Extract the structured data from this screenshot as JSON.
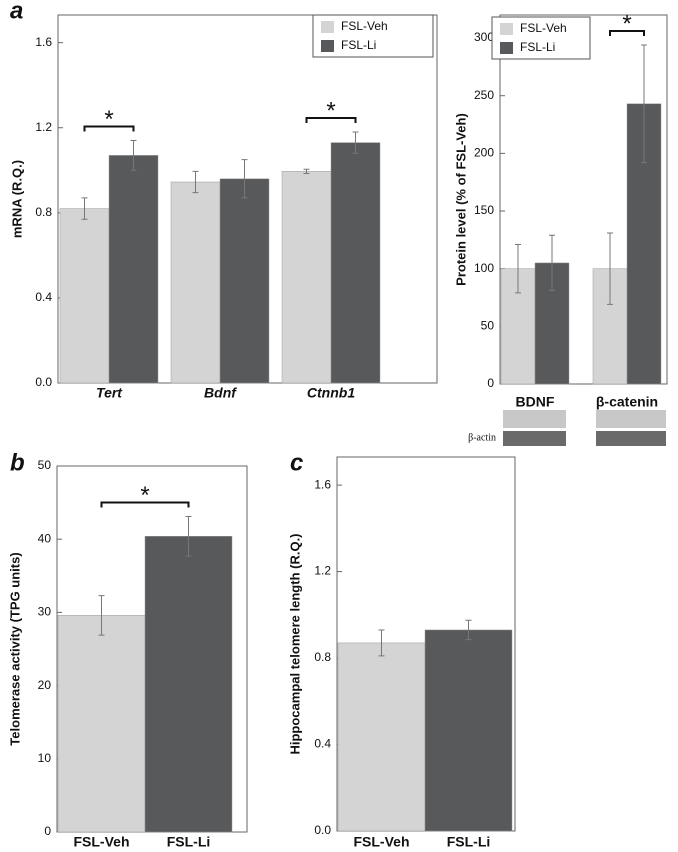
{
  "chart_data": [
    {
      "type": "bar",
      "panel_label": "a",
      "y_label": "mRNA (R.Q.)",
      "categories": [
        "Tert",
        "Bdnf",
        "Ctnnb1"
      ],
      "series": [
        {
          "name": "FSL-Veh",
          "color": "#d4d4d4",
          "values": [
            0.82,
            0.945,
            0.995
          ],
          "errors": [
            0.05,
            0.05,
            0.01
          ]
        },
        {
          "name": "FSL-Li",
          "color": "#58595b",
          "values": [
            1.07,
            0.96,
            1.13
          ],
          "errors": [
            0.07,
            0.09,
            0.05
          ]
        }
      ],
      "significance": [
        "*",
        null,
        "*"
      ],
      "ylim": [
        0,
        1.73
      ],
      "yticks": [
        {
          "value": 0,
          "label": "0.0"
        },
        0.4,
        0.8,
        1.2,
        1.6
      ],
      "legend": "upper right",
      "italic_categories": true
    },
    {
      "type": "bar",
      "y_label": "Protein level (% of FSL-Veh)",
      "categories": [
        "BDNF",
        "β-catenin"
      ],
      "series": [
        {
          "name": "FSL-Veh",
          "color": "#d4d4d4",
          "values": [
            100,
            100
          ],
          "errors": [
            21,
            31
          ]
        },
        {
          "name": "FSL-Li",
          "color": "#58595b",
          "values": [
            105,
            243
          ],
          "errors": [
            24,
            51
          ]
        }
      ],
      "significance": [
        null,
        "*"
      ],
      "ylim": [
        0,
        320
      ],
      "yticks": [
        0,
        50,
        100,
        150,
        200,
        250,
        300
      ],
      "legend": "upper left",
      "loading_control": "β-actin"
    },
    {
      "type": "bar",
      "panel_label": "b",
      "y_label": "Telomerase activity (TPG units)",
      "categories": [
        "FSL-Veh",
        "FSL-Li"
      ],
      "values": [
        29.6,
        40.4
      ],
      "errors": [
        2.7,
        2.7
      ],
      "colors": [
        "#d4d4d4",
        "#58595b"
      ],
      "significance": "*",
      "ylim": [
        0,
        50
      ],
      "yticks": [
        0,
        10,
        20,
        30,
        40,
        50
      ]
    },
    {
      "type": "bar",
      "panel_label": "c",
      "y_label": "Hippocampal telomere length (R.Q.)",
      "categories": [
        "FSL-Veh",
        "FSL-Li"
      ],
      "values": [
        0.87,
        0.93
      ],
      "errors": [
        0.06,
        0.045
      ],
      "colors": [
        "#d4d4d4",
        "#58595b"
      ],
      "ylim": [
        0,
        1.73
      ],
      "yticks": [
        {
          "value": 0,
          "label": "0.0"
        },
        0.4,
        0.8,
        1.2,
        1.6
      ]
    }
  ]
}
